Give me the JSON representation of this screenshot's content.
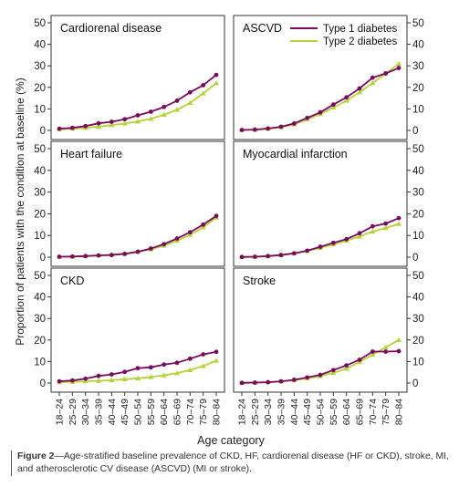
{
  "figure": {
    "ylabel": "Proportion of patients with the condition at baseline (%)",
    "xlabel": "Age category",
    "caption_label": "Figure 2",
    "caption_text": "—Age-stratified baseline prevalence of CKD, HF, cardiorenal disease (HF or CKD), stroke, MI, and atherosclerotic CV disease (ASCVD) (MI or stroke).",
    "legend_placement": "top-right of ASCVD panel"
  },
  "colors": {
    "type1": "#7a0a5e",
    "type2": "#b5d335"
  },
  "chart_data": {
    "type": "line",
    "categories": [
      "18–24",
      "25–29",
      "30–34",
      "35–39",
      "40–44",
      "45–49",
      "50–54",
      "55–59",
      "60–64",
      "65–69",
      "70–74",
      "75–79",
      "80–84"
    ],
    "ylim": [
      0,
      50
    ],
    "yticks": [
      0,
      10,
      20,
      30,
      40,
      50
    ],
    "grid": false,
    "legend": [
      "Type 1 diabetes",
      "Type 2 diabetes"
    ],
    "panels": [
      {
        "title": "Cardiorenal disease",
        "series": [
          {
            "name": "Type 1 diabetes",
            "values": [
              0.8,
              1.2,
              2.0,
              3.3,
              4.0,
              5.2,
              7.0,
              8.7,
              10.9,
              13.8,
              17.7,
              21.0,
              25.8
            ]
          },
          {
            "name": "Type 2 diabetes",
            "values": [
              0.5,
              0.8,
              1.2,
              1.8,
              2.5,
              3.2,
              4.1,
              5.4,
              7.3,
              9.6,
              12.8,
              17.2,
              22.0
            ]
          }
        ]
      },
      {
        "title": "ASCVD",
        "series": [
          {
            "name": "Type 1 diabetes",
            "values": [
              0.2,
              0.4,
              0.9,
              1.7,
              3.2,
              5.8,
              8.4,
              12.0,
              15.4,
              19.5,
              24.5,
              26.5,
              29.0
            ]
          },
          {
            "name": "Type 2 diabetes",
            "values": [
              0.2,
              0.3,
              0.7,
              1.5,
              2.8,
              5.2,
              7.6,
              10.6,
              13.8,
              17.7,
              22.0,
              26.4,
              31.0
            ]
          }
        ]
      },
      {
        "title": "Heart failure",
        "series": [
          {
            "name": "Type 1 diabetes",
            "values": [
              0.2,
              0.3,
              0.5,
              0.8,
              1.0,
              1.5,
              2.5,
              4.0,
              6.0,
              8.6,
              11.5,
              15.0,
              19.0
            ]
          },
          {
            "name": "Type 2 diabetes",
            "values": [
              0.2,
              0.3,
              0.5,
              0.8,
              1.2,
              1.7,
              2.6,
              3.6,
              5.3,
              7.6,
              10.3,
              13.8,
              18.2
            ]
          }
        ]
      },
      {
        "title": "Myocardial infarction",
        "series": [
          {
            "name": "Type 1 diabetes",
            "values": [
              0.1,
              0.2,
              0.5,
              1.0,
              1.8,
              3.0,
              4.8,
              6.6,
              8.3,
              11.0,
              14.2,
              15.5,
              18.0
            ]
          },
          {
            "name": "Type 2 diabetes",
            "values": [
              0.1,
              0.2,
              0.4,
              0.9,
              1.7,
              2.8,
              4.3,
              5.9,
              7.7,
              9.5,
              11.8,
              13.5,
              15.3
            ]
          }
        ]
      },
      {
        "title": "CKD",
        "series": [
          {
            "name": "Type 1 diabetes",
            "values": [
              0.8,
              1.2,
              2.0,
              3.3,
              4.0,
              5.2,
              6.9,
              7.3,
              8.6,
              9.4,
              11.3,
              13.3,
              14.5
            ]
          },
          {
            "name": "Type 2 diabetes",
            "values": [
              0.4,
              0.6,
              0.8,
              1.0,
              1.3,
              1.8,
              2.2,
              2.8,
              3.6,
              4.6,
              6.0,
              7.9,
              10.4
            ]
          }
        ]
      },
      {
        "title": "Stroke",
        "series": [
          {
            "name": "Type 1 diabetes",
            "values": [
              0.1,
              0.2,
              0.4,
              0.8,
              1.5,
              2.6,
              3.8,
              6.0,
              8.2,
              10.8,
              14.6,
              14.6,
              14.8
            ]
          },
          {
            "name": "Type 2 diabetes",
            "values": [
              0.1,
              0.2,
              0.4,
              0.7,
              1.3,
              2.2,
              3.2,
              4.7,
              6.7,
              9.8,
              13.2,
              16.6,
              20.0
            ]
          }
        ]
      }
    ]
  }
}
